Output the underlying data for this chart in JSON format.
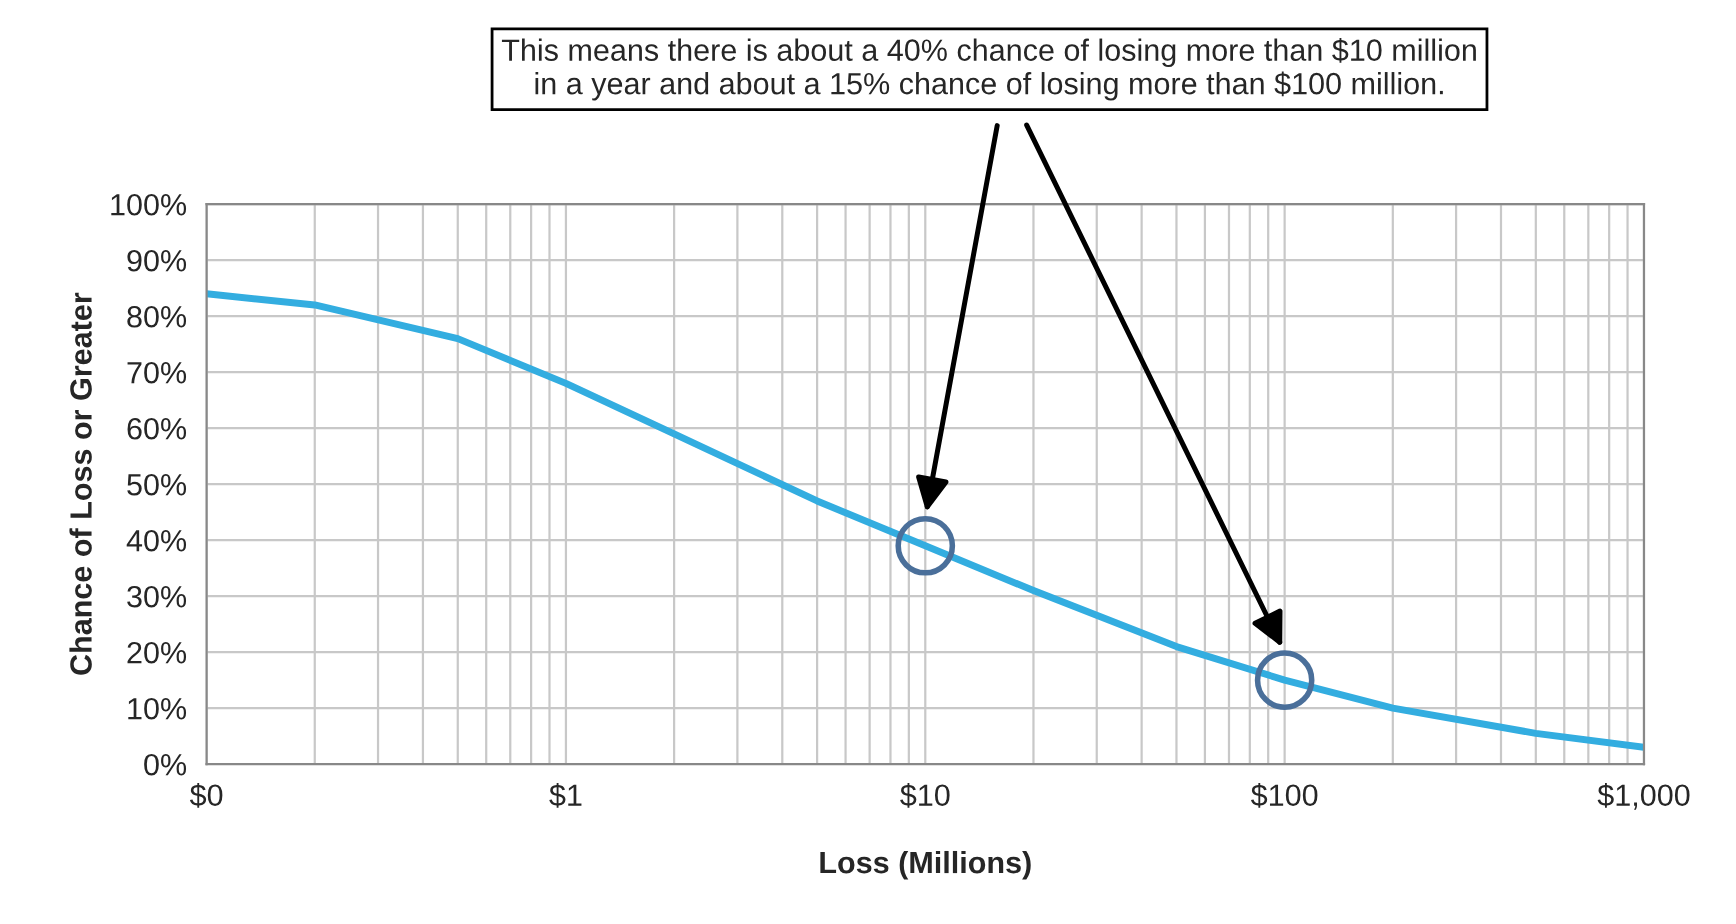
{
  "chart_data": {
    "type": "line",
    "xlabel": "Loss (Millions)",
    "ylabel": "Chance of Loss or Greater",
    "annotations": [
      "This means there is about a 40% chance of losing more than $10 million\nin a year and about a 15% chance of losing more than $100 million."
    ],
    "log": "x",
    "series": [
      {
        "color": "#33ade0",
        "x": [
          0.1,
          0.2,
          0.5,
          1,
          2,
          5,
          10,
          20,
          50,
          100,
          200,
          500,
          1000
        ],
        "values": [
          84,
          82,
          76,
          68,
          59,
          47,
          39,
          31,
          21,
          15,
          10,
          5.5,
          3
        ]
      },
      {
        "type": "scatter",
        "color": "#4a6f9a",
        "marker": "circle",
        "x": [
          10,
          100
        ],
        "values": [
          39,
          15
        ]
      }
    ],
    "xlim": [
      0.1,
      1000
    ],
    "xticks": [
      {
        "value": 0.1,
        "label": "$0"
      },
      {
        "value": 1,
        "label": "$1"
      },
      {
        "value": 10,
        "label": "$10"
      },
      {
        "value": 100,
        "label": "$100"
      },
      {
        "value": 1000,
        "label": "$1,000"
      }
    ],
    "ylim": [
      0,
      100
    ],
    "yticks": [
      {
        "value": 0,
        "label": "0%"
      },
      {
        "value": 10,
        "label": "10%"
      },
      {
        "value": 20,
        "label": "20%"
      },
      {
        "value": 30,
        "label": "30%"
      },
      {
        "value": 40,
        "label": "40%"
      },
      {
        "value": 50,
        "label": "50%"
      },
      {
        "value": 60,
        "label": "60%"
      },
      {
        "value": 70,
        "label": "70%"
      },
      {
        "value": 80,
        "label": "80%"
      },
      {
        "value": 90,
        "label": "90%"
      },
      {
        "value": 100,
        "label": "100%"
      }
    ],
    "grid": true,
    "legend": false
  }
}
